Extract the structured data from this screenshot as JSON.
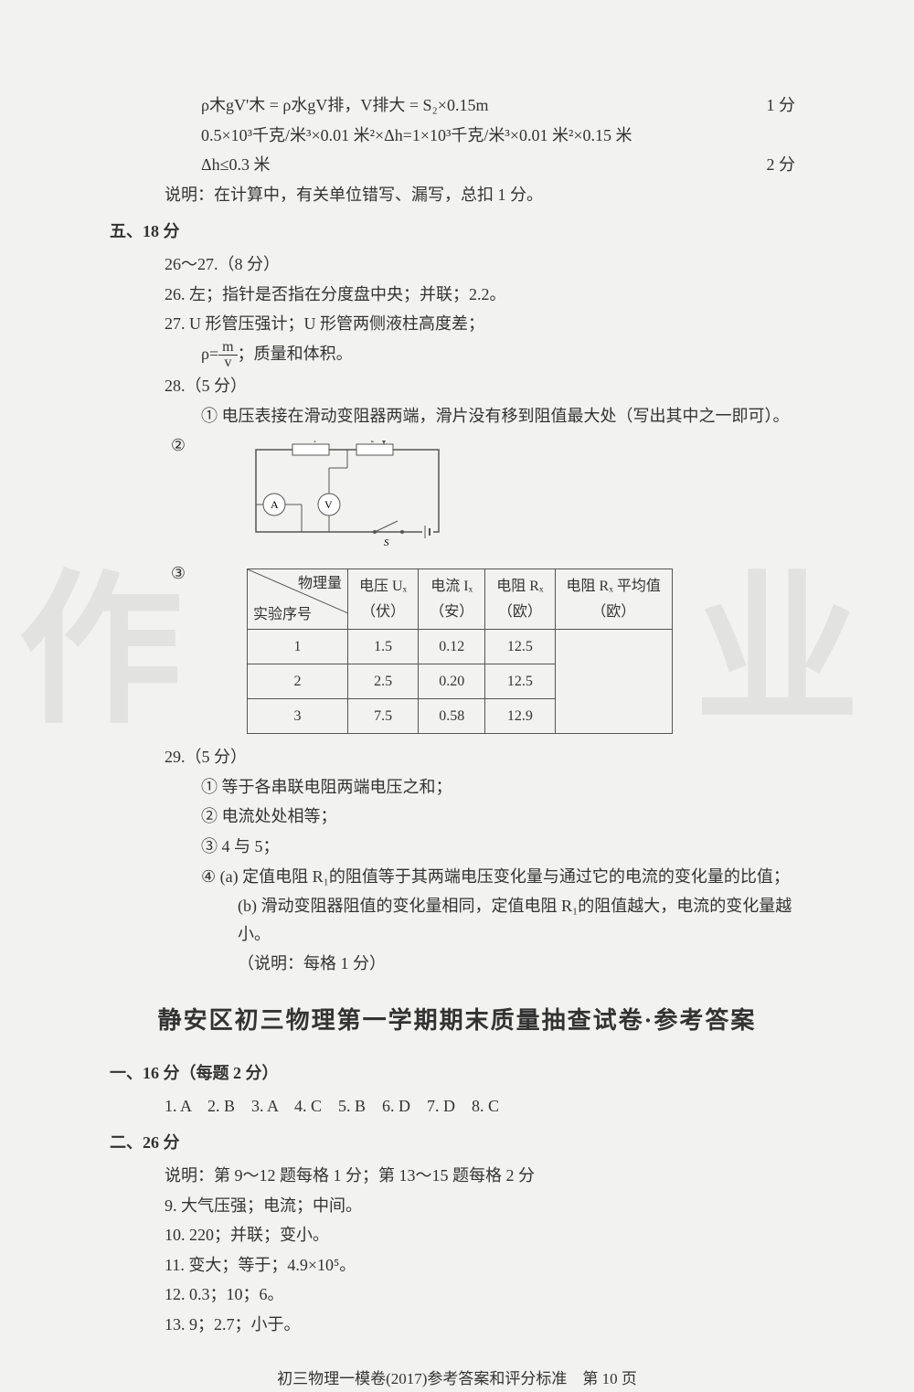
{
  "top_equations": {
    "eq1": "ρ木gV'木 = ρ水gV排，V排大 = S₂×0.15m",
    "eq1_score": "1 分",
    "eq2": "0.5×10³千克/米³×0.01 米²×Δh=1×10³千克/米³×0.01 米²×0.15 米",
    "eq3": "Δh≤0.3 米",
    "eq3_score": "2 分",
    "note": "说明：在计算中，有关单位错写、漏写，总扣 1 分。"
  },
  "section5": {
    "heading": "五、18 分",
    "q26_27": "26～27.（8 分）",
    "q26": "26. 左；指针是否指在分度盘中央；并联；2.2。",
    "q27": "27. U 形管压强计；U 形管两侧液柱高度差；",
    "q27_formula_prefix": "ρ=",
    "q27_frac_num": "m",
    "q27_frac_den": "v",
    "q27_suffix": "；质量和体积。",
    "q28": "28.（5 分）",
    "q28_1": "① 电压表接在滑动变阻器两端，滑片没有移到阻值最大处（写出其中之一即可）。",
    "q28_2_label": "②",
    "q28_3_label": "③",
    "circuit_labels": {
      "R1": "R₁",
      "R2": "R₂",
      "P": "P",
      "A": "A",
      "V": "V",
      "S": "S"
    },
    "table": {
      "header_diag_top": "物理量",
      "header_diag_bot": "实验序号",
      "headers": [
        "电压 Uₓ\n（伏）",
        "电流 Iₓ\n（安）",
        "电阻 Rₓ\n（欧）",
        "电阻 Rₓ 平均值\n（欧）"
      ],
      "rows": [
        [
          "1",
          "1.5",
          "0.12",
          "12.5"
        ],
        [
          "2",
          "2.5",
          "0.20",
          "12.5"
        ],
        [
          "3",
          "7.5",
          "0.58",
          "12.9"
        ]
      ]
    },
    "q29": "29.（5 分）",
    "q29_1": "① 等于各串联电阻两端电压之和；",
    "q29_2": "② 电流处处相等；",
    "q29_3": "③ 4 与 5；",
    "q29_4a": "④ (a) 定值电阻 R₁的阻值等于其两端电压变化量与通过它的电流的变化量的比值；",
    "q29_4b": "(b) 滑动变阻器阻值的变化量相同，定值电阻 R₁的阻值越大，电流的变化量越小。",
    "q29_note": "（说明：每格 1 分）"
  },
  "title": "静安区初三物理第一学期期末质量抽查试卷·参考答案",
  "section1": {
    "heading": "一、16 分（每题 2 分）",
    "answers": "1. A　2. B　3. A　4. C　5. B　6. D　7. D　8. C"
  },
  "section2": {
    "heading": "二、26 分",
    "note": "说明：第 9～12 题每格 1 分；第 13～15 题每格 2 分",
    "q9": "9. 大气压强；电流；中间。",
    "q10": "10. 220；并联；变小。",
    "q11": "11. 变大；等于；4.9×10⁵。",
    "q12": "12. 0.3；10；6。",
    "q13": "13. 9；2.7；小于。"
  },
  "footer": "初三物理一模卷(2017)参考答案和评分标准　第 10 页",
  "watermarks": {
    "left": "作",
    "right": "业"
  }
}
